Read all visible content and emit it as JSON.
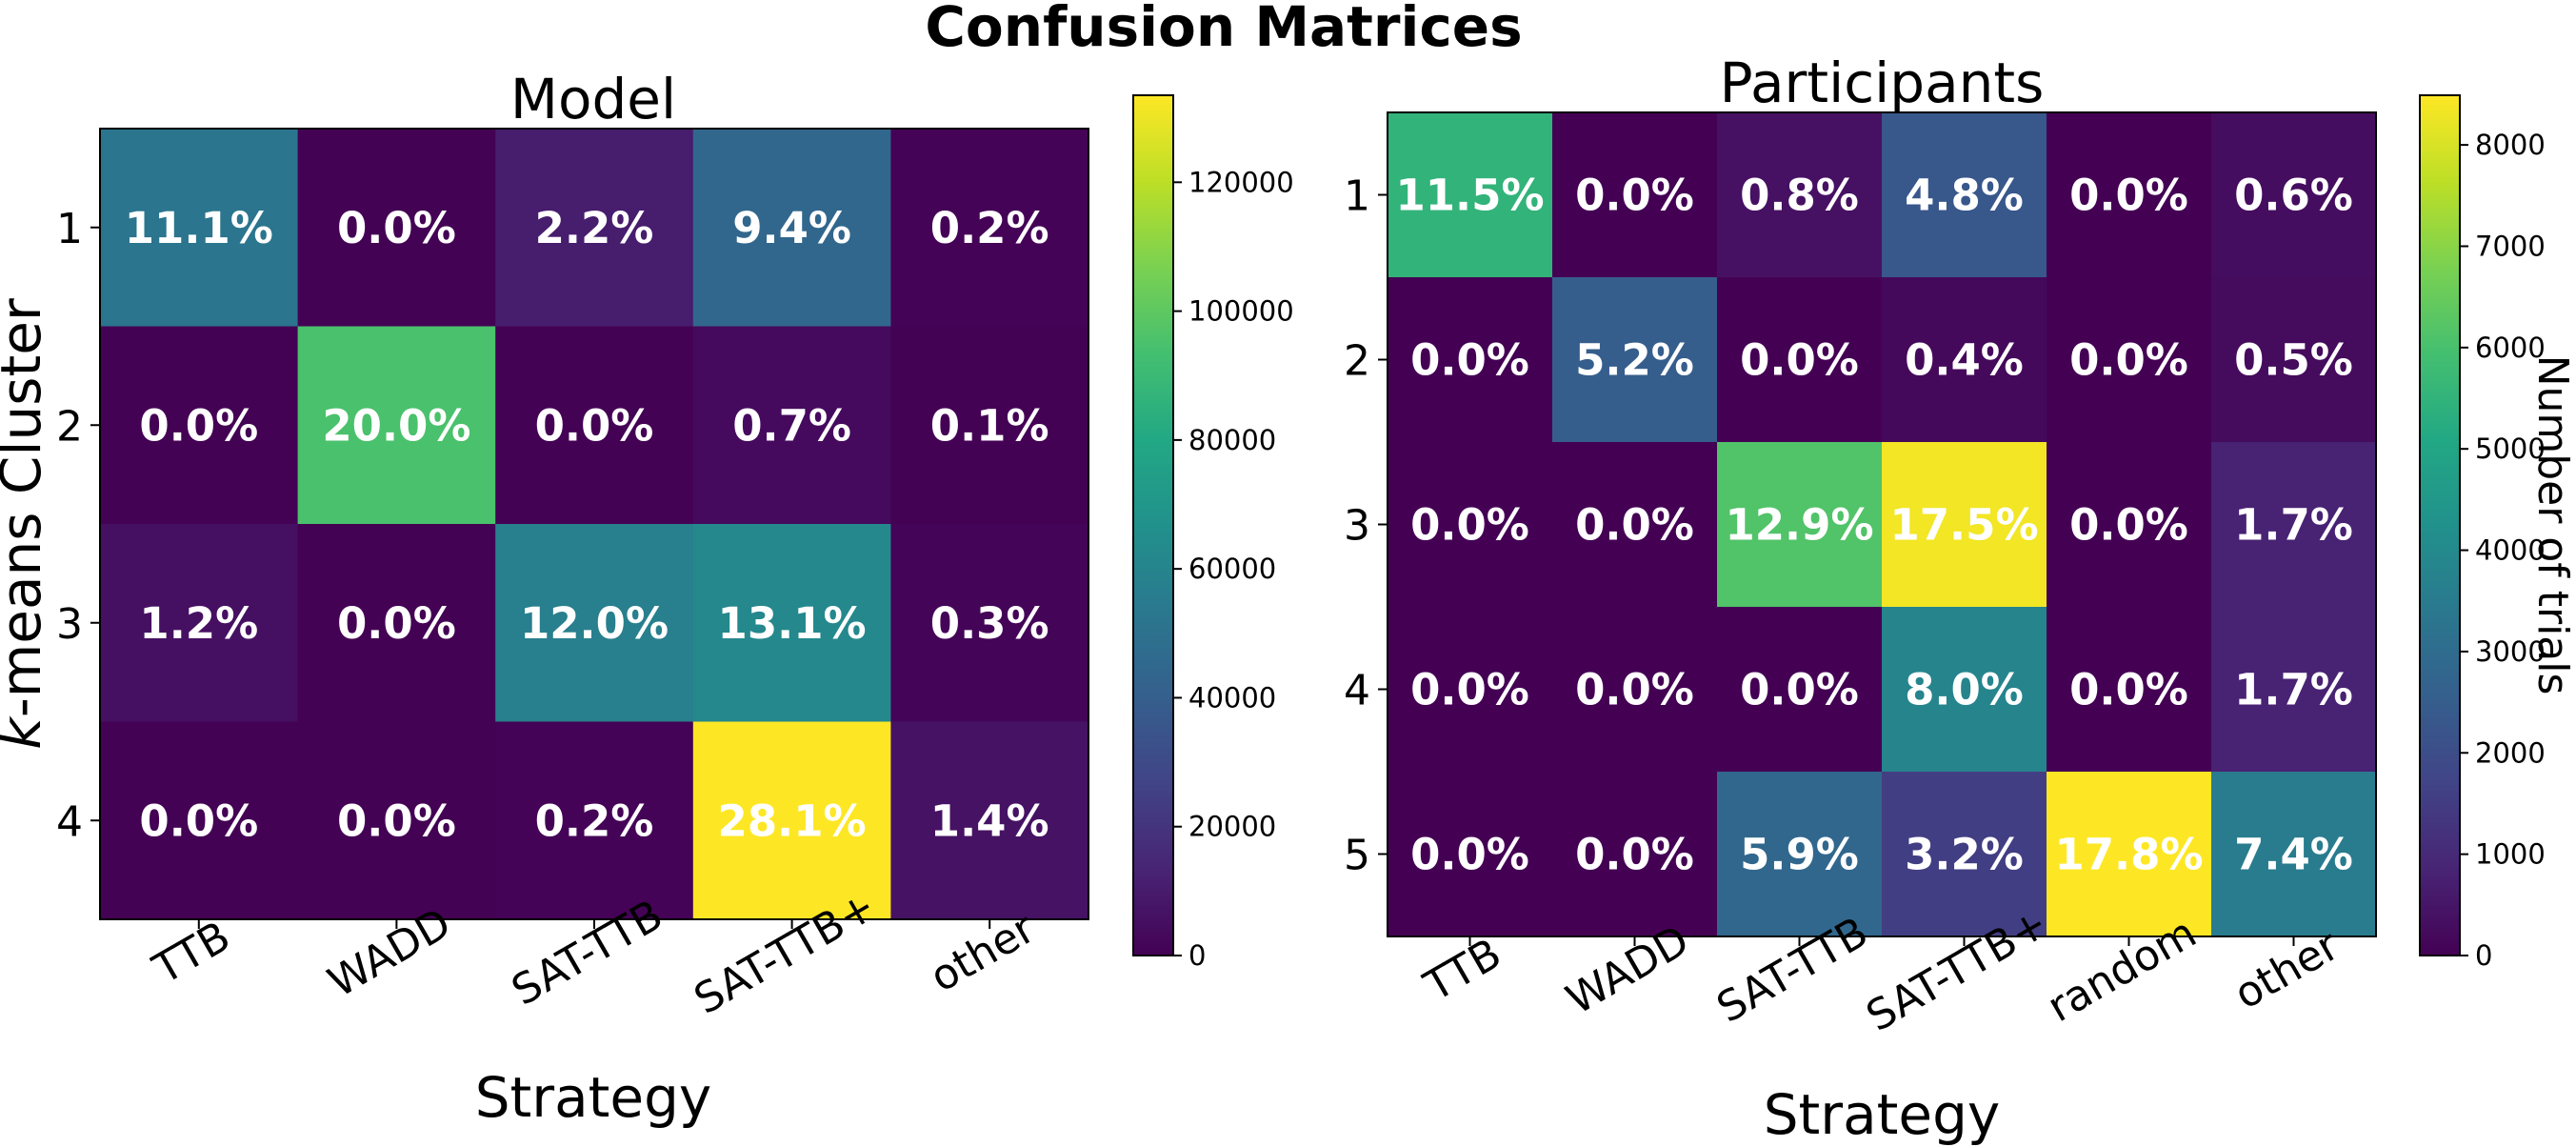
{
  "figure": {
    "title": "Confusion Matrices"
  },
  "chart_data": [
    {
      "type": "heatmap",
      "title": "Model",
      "xlabel": "Strategy",
      "ylabel_italic": "k",
      "ylabel_rest": "-means Cluster",
      "x_categories": [
        "TTB",
        "WADD",
        "SAT-TTB",
        "SAT-TTB+",
        "other"
      ],
      "y_categories": [
        "1",
        "2",
        "3",
        "4"
      ],
      "labels": [
        [
          "11.1%",
          "0.0%",
          "2.2%",
          "9.4%",
          "0.2%"
        ],
        [
          "0.0%",
          "20.0%",
          "0.0%",
          "0.7%",
          "0.1%"
        ],
        [
          "1.2%",
          "0.0%",
          "12.0%",
          "13.1%",
          "0.3%"
        ],
        [
          "0.0%",
          "0.0%",
          "0.2%",
          "28.1%",
          "1.4%"
        ]
      ],
      "values": [
        [
          52000,
          200,
          10500,
          44500,
          900
        ],
        [
          200,
          95000,
          200,
          3500,
          500
        ],
        [
          5800,
          200,
          57000,
          62000,
          1500
        ],
        [
          200,
          200,
          900,
          133500,
          6600
        ]
      ],
      "colorbar": {
        "min": 0,
        "max": 133500,
        "ticks": [
          0,
          20000,
          40000,
          60000,
          80000,
          100000,
          120000
        ],
        "tick_labels": [
          "0",
          "20000",
          "40000",
          "60000",
          "80000",
          "100000",
          "120000"
        ],
        "label": ""
      }
    },
    {
      "type": "heatmap",
      "title": "Participants",
      "xlabel": "Strategy",
      "ylabel": "",
      "x_categories": [
        "TTB",
        "WADD",
        "SAT-TTB",
        "SAT-TTB+",
        "random",
        "other"
      ],
      "y_categories": [
        "1",
        "2",
        "3",
        "4",
        "5"
      ],
      "labels": [
        [
          "11.5%",
          "0.0%",
          "0.8%",
          "4.8%",
          "0.0%",
          "0.6%"
        ],
        [
          "0.0%",
          "5.2%",
          "0.0%",
          "0.4%",
          "0.0%",
          "0.5%"
        ],
        [
          "0.0%",
          "0.0%",
          "12.9%",
          "17.5%",
          "0.0%",
          "1.7%"
        ],
        [
          "0.0%",
          "0.0%",
          "0.0%",
          "8.0%",
          "0.0%",
          "1.7%"
        ],
        [
          "0.0%",
          "0.0%",
          "5.9%",
          "3.2%",
          "17.8%",
          "7.4%"
        ]
      ],
      "values": [
        [
          5500,
          10,
          380,
          2300,
          10,
          290
        ],
        [
          10,
          2500,
          10,
          190,
          10,
          240
        ],
        [
          10,
          10,
          6150,
          8350,
          10,
          810
        ],
        [
          10,
          10,
          10,
          3820,
          10,
          810
        ],
        [
          10,
          10,
          2820,
          1530,
          8490,
          3530
        ]
      ],
      "colorbar": {
        "min": 0,
        "max": 8490,
        "ticks": [
          0,
          1000,
          2000,
          3000,
          4000,
          5000,
          6000,
          7000,
          8000
        ],
        "tick_labels": [
          "0",
          "1000",
          "2000",
          "3000",
          "4000",
          "5000",
          "6000",
          "7000",
          "8000"
        ],
        "label": "Number of trials"
      }
    }
  ]
}
